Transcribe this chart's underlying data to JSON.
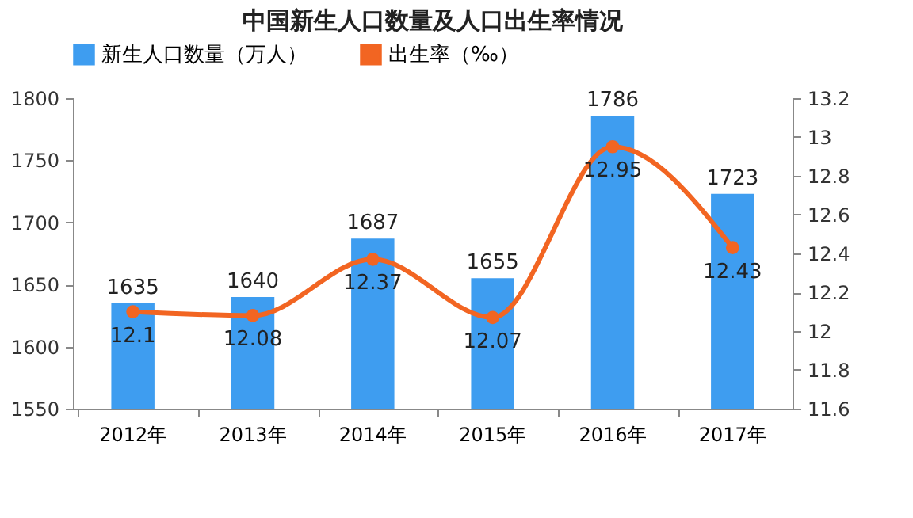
{
  "chart_data": {
    "type": "bar",
    "title": "中国新生人口数量及人口出生率情况",
    "categories": [
      "2012年",
      "2013年",
      "2014年",
      "2015年",
      "2016年",
      "2017年"
    ],
    "series": [
      {
        "name": "新生人口数量（万人）",
        "color": "#3e9df0",
        "values": [
          1635,
          1640,
          1687,
          1655,
          1786,
          1723
        ]
      },
      {
        "name": "出生率（‰）",
        "type": "line",
        "axis": "y2",
        "color": "#f26522",
        "values": [
          12.1,
          12.08,
          12.37,
          12.07,
          12.95,
          12.43
        ]
      }
    ],
    "ylim": [
      1550,
      1800
    ],
    "yticks": [
      1550,
      1600,
      1650,
      1700,
      1750,
      1800
    ],
    "y2lim": [
      11.6,
      13.2
    ],
    "y2ticks": [
      11.6,
      11.8,
      12,
      12.2,
      12.4,
      12.6,
      12.8,
      13,
      13.2
    ],
    "data_labels": true,
    "legend": "top",
    "marker": "circle"
  }
}
